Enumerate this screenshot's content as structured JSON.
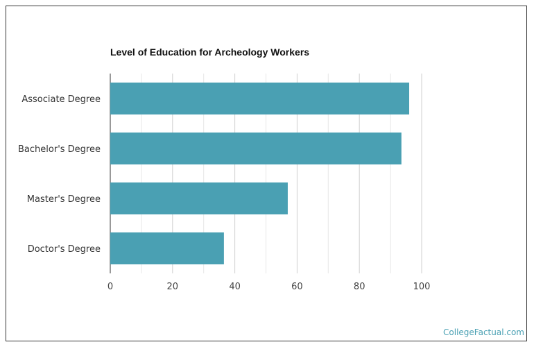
{
  "chart_data": {
    "type": "bar",
    "orientation": "horizontal",
    "title": "Level of Education for Archeology Workers",
    "categories": [
      "Associate Degree",
      "Bachelor's Degree",
      "Master's Degree",
      "Doctor's Degree"
    ],
    "values": [
      96,
      93.5,
      57,
      36.5
    ],
    "xlabel": "",
    "ylabel": "",
    "xlim": [
      0,
      100
    ],
    "xticks": [
      "0",
      "20",
      "40",
      "60",
      "80",
      "100"
    ],
    "grid": true,
    "bar_color": "#4aa0b3"
  },
  "watermark": {
    "text": "CollegeFactual.com",
    "color": "#4aa0b3"
  }
}
